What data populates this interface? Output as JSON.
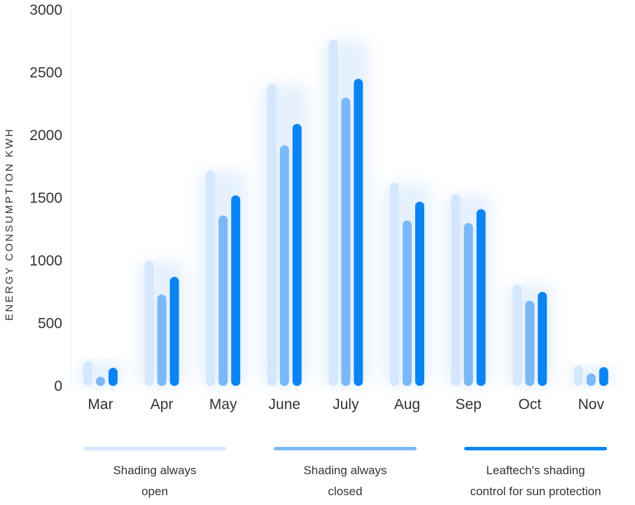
{
  "chart_data": {
    "type": "bar",
    "ylabel": "ENERGY CONSUMPTION KWH",
    "xlabel": "",
    "title": "",
    "ylim": [
      0,
      3000
    ],
    "yticks": [
      "0",
      "500",
      "1000",
      "1500",
      "2000",
      "2500",
      "3000"
    ],
    "categories": [
      "Mar",
      "Apr",
      "May",
      "June",
      "July",
      "Aug",
      "Sep",
      "Oct",
      "Nov"
    ],
    "series": [
      {
        "name": "Shading always open",
        "legend_lines": [
          "Shading always",
          "open"
        ],
        "color": "#d4e7fc",
        "values": [
          200,
          1000,
          1720,
          2410,
          2760,
          1620,
          1530,
          810,
          160
        ]
      },
      {
        "name": "Shading always closed",
        "legend_lines": [
          "Shading always",
          "closed"
        ],
        "color": "#7bb8f7",
        "values": [
          40,
          730,
          1360,
          1920,
          2300,
          1320,
          1300,
          680,
          100
        ]
      },
      {
        "name": "Leaftech's shading control for sun protection",
        "legend_lines": [
          "Leaftech's shading",
          "control for sun protection"
        ],
        "color": "#0b84f3",
        "values": [
          145,
          870,
          1520,
          2090,
          2450,
          1470,
          1410,
          750,
          150
        ]
      }
    ],
    "grid": false,
    "legend": "bottom"
  }
}
